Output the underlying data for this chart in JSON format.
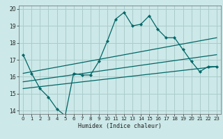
{
  "bg_color": "#cce8e8",
  "grid_color": "#aacccc",
  "line_color": "#006666",
  "xlabel": "Humidex (Indice chaleur)",
  "xlim": [
    -0.5,
    23.5
  ],
  "ylim": [
    13.8,
    20.2
  ],
  "yticks": [
    14,
    15,
    16,
    17,
    18,
    19,
    20
  ],
  "xticks": [
    0,
    1,
    2,
    3,
    4,
    5,
    6,
    7,
    8,
    9,
    10,
    11,
    12,
    13,
    14,
    15,
    16,
    17,
    18,
    19,
    20,
    21,
    22,
    23
  ],
  "curve1_x": [
    0,
    1,
    2,
    3,
    4,
    5,
    6,
    7,
    8,
    9,
    10,
    11,
    12,
    13,
    14,
    15,
    16,
    17,
    18,
    19,
    20,
    21,
    22,
    23
  ],
  "curve1_y": [
    17.3,
    16.2,
    15.3,
    14.8,
    14.1,
    13.7,
    16.2,
    16.1,
    16.1,
    16.9,
    18.1,
    19.4,
    19.8,
    19.0,
    19.1,
    19.6,
    18.8,
    18.3,
    18.3,
    17.6,
    16.9,
    16.3,
    16.6,
    16.6
  ],
  "line1_x": [
    0,
    23
  ],
  "line1_y": [
    16.2,
    18.3
  ],
  "line2_x": [
    0,
    23
  ],
  "line2_y": [
    15.7,
    17.3
  ],
  "line3_x": [
    0,
    23
  ],
  "line3_y": [
    15.3,
    16.6
  ]
}
